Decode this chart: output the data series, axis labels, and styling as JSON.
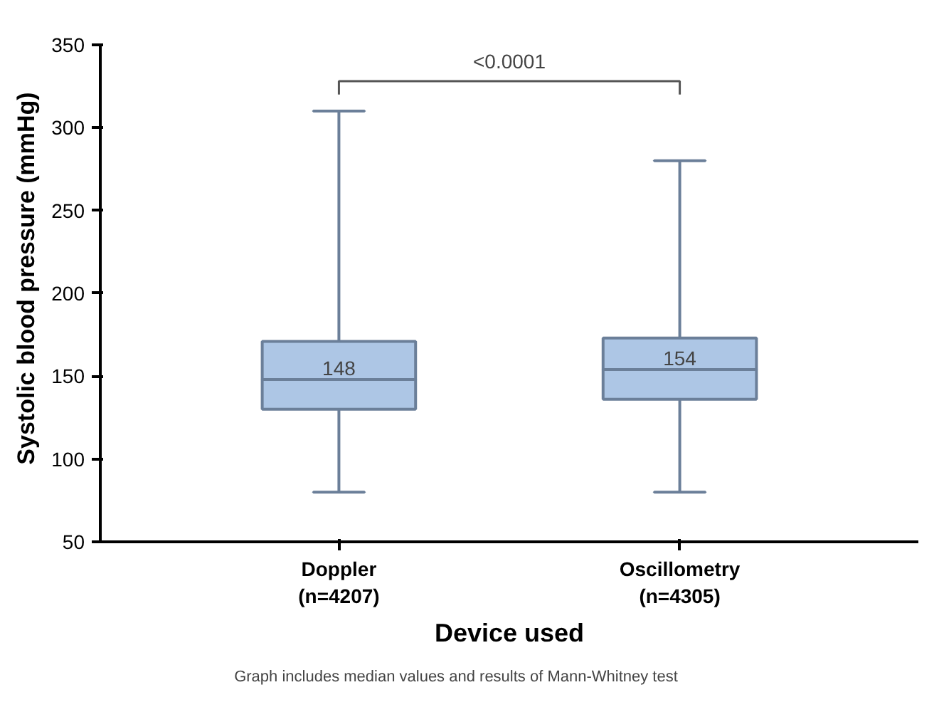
{
  "chart_data": {
    "type": "box",
    "xlabel": "Device used",
    "ylabel": "Systolic blood pressure (mmHg)",
    "categories": [
      "Doppler\n(n=4207)",
      "Oscillometry\n(n=4305)"
    ],
    "boxes": [
      {
        "low": 80,
        "q1": 130,
        "median": 148,
        "q3": 171,
        "high": 310
      },
      {
        "low": 80,
        "q1": 136,
        "median": 154,
        "q3": 173,
        "high": 280
      }
    ],
    "color": "#adc6e5",
    "ylim": [
      50,
      350
    ],
    "yticks": [
      50,
      100,
      150,
      200,
      250,
      300,
      350
    ],
    "value_labels": [
      "148",
      "154"
    ],
    "grid": false,
    "annotations": [
      "<0.0001",
      "Graph includes median values and results of Mann-Whitney test"
    ]
  }
}
